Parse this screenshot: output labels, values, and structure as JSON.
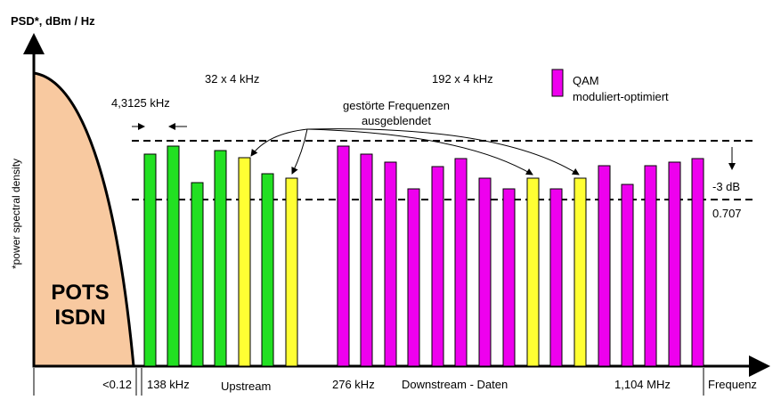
{
  "header": {
    "y_axis_title": "PSD*, dBm / Hz",
    "y_axis_note": "*power spectral density"
  },
  "annotations": {
    "upstream_spacing": "32 x 4 kHz",
    "carrier_width": "4,3125 kHz",
    "disturbed_line1": "gestörte Frequenzen",
    "disturbed_line2": "ausgeblendet",
    "downstream_spacing": "192 x 4 kHz",
    "attenuation": "-3 dB",
    "factor": "0.707"
  },
  "legend": {
    "label1": "QAM",
    "label2": "moduliert-optimiert"
  },
  "pots": {
    "line1": "POTS",
    "line2": "ISDN"
  },
  "x_labels": [
    "<0.12",
    "138 kHz",
    "Upstream",
    "276 kHz",
    "Downstream - Daten",
    "1,104 MHz",
    "Frequenz"
  ]
}
